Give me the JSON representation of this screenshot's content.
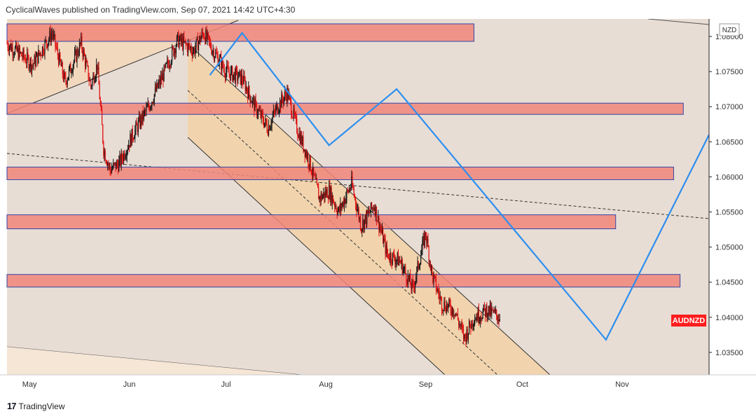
{
  "header": {
    "publisher_line": "CyclicalWaves published on TradingView.com, Sep 07, 2021 14:42 UTC+4:30"
  },
  "footer": {
    "brand": "TradingView",
    "logo_icon": "tradingview-logo-icon"
  },
  "chart_data": {
    "type": "candlestick",
    "symbol_label": "AUDNZD",
    "currency_label": "NZD",
    "current_price": 1.04,
    "y_ticks": [
      "1.08000",
      "1.07500",
      "1.07000",
      "1.06500",
      "1.06000",
      "1.05500",
      "1.05000",
      "1.04500",
      "1.04000",
      "1.03500"
    ],
    "ylim": [
      1.0318,
      1.0825
    ],
    "x_labels": [
      "May",
      "Jun",
      "Jul",
      "Aug",
      "Sep",
      "Oct",
      "Nov"
    ],
    "x_range": [
      "2021-04-24",
      "2021-11-28"
    ],
    "x_label_dates": [
      "2021-05-01",
      "2021-06-01",
      "2021-07-01",
      "2021-08-01",
      "2021-09-01",
      "2021-10-01",
      "2021-11-01"
    ],
    "price_path": [
      {
        "date": "2021-04-24",
        "price": 1.079
      },
      {
        "date": "2021-05-02",
        "price": 1.076
      },
      {
        "date": "2021-05-08",
        "price": 1.0805
      },
      {
        "date": "2021-05-12",
        "price": 1.0735
      },
      {
        "date": "2021-05-17",
        "price": 1.079
      },
      {
        "date": "2021-05-20",
        "price": 1.073
      },
      {
        "date": "2021-05-22",
        "price": 1.076
      },
      {
        "date": "2021-05-24",
        "price": 1.064
      },
      {
        "date": "2021-05-26",
        "price": 1.061
      },
      {
        "date": "2021-05-29",
        "price": 1.062
      },
      {
        "date": "2021-06-02",
        "price": 1.066
      },
      {
        "date": "2021-06-07",
        "price": 1.07
      },
      {
        "date": "2021-06-12",
        "price": 1.075
      },
      {
        "date": "2021-06-16",
        "price": 1.0795
      },
      {
        "date": "2021-06-21",
        "price": 1.078
      },
      {
        "date": "2021-06-24",
        "price": 1.0805
      },
      {
        "date": "2021-06-27",
        "price": 1.078
      },
      {
        "date": "2021-07-01",
        "price": 1.075
      },
      {
        "date": "2021-07-06",
        "price": 1.074
      },
      {
        "date": "2021-07-10",
        "price": 1.07
      },
      {
        "date": "2021-07-14",
        "price": 1.067
      },
      {
        "date": "2021-07-17",
        "price": 1.07
      },
      {
        "date": "2021-07-20",
        "price": 1.072
      },
      {
        "date": "2021-07-23",
        "price": 1.067
      },
      {
        "date": "2021-07-27",
        "price": 1.062
      },
      {
        "date": "2021-07-30",
        "price": 1.057
      },
      {
        "date": "2021-08-02",
        "price": 1.058
      },
      {
        "date": "2021-08-05",
        "price": 1.055
      },
      {
        "date": "2021-08-09",
        "price": 1.059
      },
      {
        "date": "2021-08-12",
        "price": 1.053
      },
      {
        "date": "2021-08-16",
        "price": 1.056
      },
      {
        "date": "2021-08-20",
        "price": 1.049
      },
      {
        "date": "2021-08-24",
        "price": 1.048
      },
      {
        "date": "2021-08-28",
        "price": 1.044
      },
      {
        "date": "2021-09-01",
        "price": 1.052
      },
      {
        "date": "2021-09-03",
        "price": 1.046
      },
      {
        "date": "2021-09-06",
        "price": 1.042
      },
      {
        "date": "2021-09-10",
        "price": 1.041
      },
      {
        "date": "2021-09-13",
        "price": 1.037
      },
      {
        "date": "2021-09-16",
        "price": 1.04
      },
      {
        "date": "2021-09-20",
        "price": 1.041
      },
      {
        "date": "2021-09-24",
        "price": 1.04
      }
    ],
    "zones": [
      {
        "label": "zone-1",
        "from": "2021-04-24",
        "to": "2021-09-16",
        "y_low": 1.0805,
        "y_high": 1.0818
      },
      {
        "label": "zone-2",
        "from": "2021-04-24",
        "to": "2021-11-20",
        "y_low": 1.0701,
        "y_high": 1.0705
      },
      {
        "label": "zone-3",
        "from": "2021-04-24",
        "to": "2021-11-17",
        "y_low": 1.0608,
        "y_high": 1.0614
      },
      {
        "label": "zone-4",
        "from": "2021-04-24",
        "to": "2021-10-30",
        "y_low": 1.0538,
        "y_high": 1.0546
      },
      {
        "label": "zone-5",
        "from": "2021-04-24",
        "to": "2021-11-19",
        "y_low": 1.0455,
        "y_high": 1.0461
      }
    ],
    "projection_path": [
      {
        "date": "2021-06-26",
        "price": 1.0745
      },
      {
        "date": "2021-07-06",
        "price": 1.0805
      },
      {
        "date": "2021-08-02",
        "price": 1.0645
      },
      {
        "date": "2021-08-23",
        "price": 1.0725
      },
      {
        "date": "2021-10-27",
        "price": 1.0368
      },
      {
        "date": "2021-11-28",
        "price": 1.066
      }
    ],
    "accent_colors": {
      "projection": "#2c8ff0",
      "zone_fill": "#f0867a",
      "zone_border": "#3346a8",
      "background": "#e8ddd4",
      "channel_fill": "#f2d3aa",
      "bull_candle": "#1a1a1a",
      "bear_candle": "#e01212",
      "price_label_bg": "#ff1e1e"
    }
  }
}
